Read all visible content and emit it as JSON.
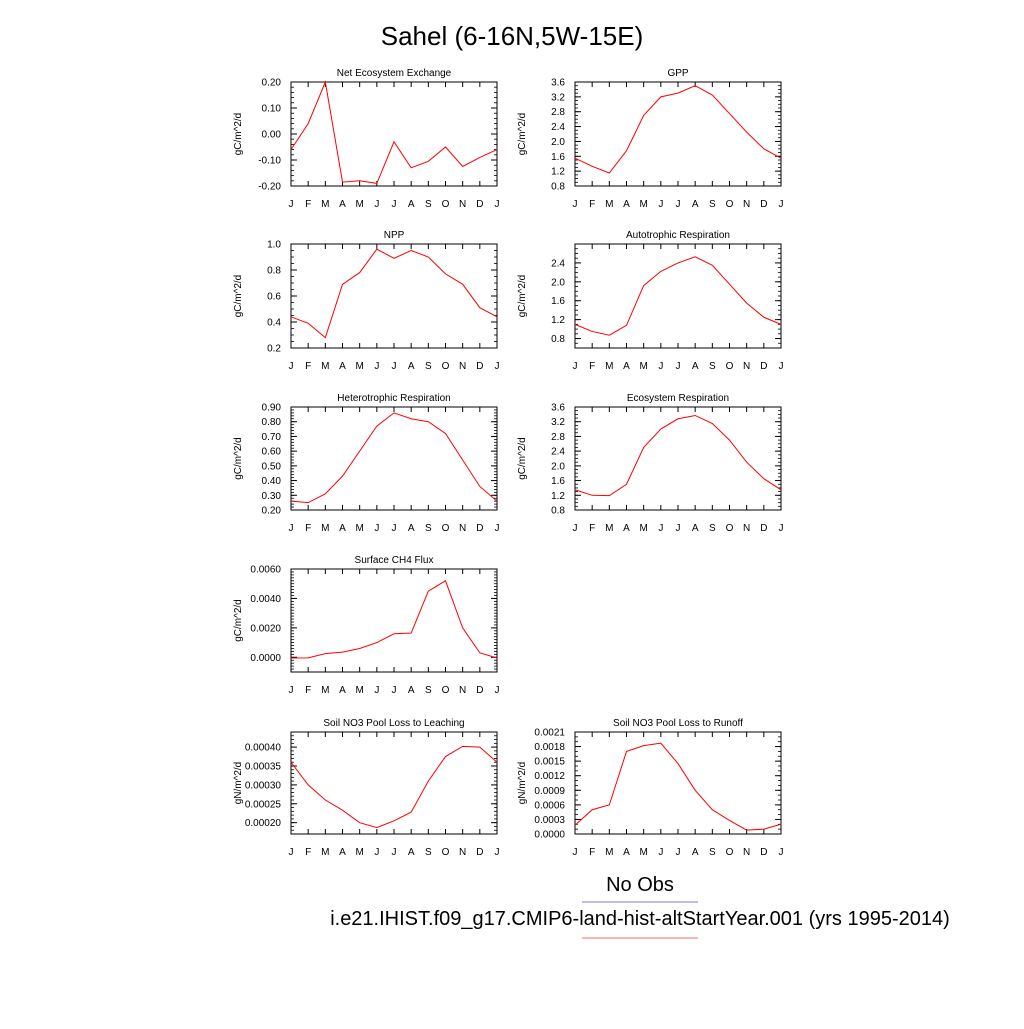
{
  "figure": {
    "title": "Sahel (6-16N,5W-15E)"
  },
  "legend": {
    "placement": "bottom-right",
    "entries": [
      {
        "label": "No Obs",
        "color": "#7777ee"
      },
      {
        "label": "i.e21.IHIST.f09_g17.CMIP6-land-hist-altStartYear.001 (yrs 1995-2014)",
        "color": "#ff6666"
      }
    ]
  },
  "chart_data": [
    {
      "type": "line",
      "title": "Net Ecosystem Exchange",
      "ylabel": "gC/m^2/d",
      "categories": [
        "J",
        "F",
        "M",
        "A",
        "M",
        "J",
        "J",
        "A",
        "S",
        "O",
        "N",
        "D",
        "J"
      ],
      "ylim": [
        -0.2,
        0.2
      ],
      "yticks": [
        -0.2,
        -0.1,
        0.0,
        0.1,
        0.2
      ],
      "ytick_labels": [
        "-0.20",
        "-0.10",
        "0.00",
        "0.10",
        "0.20"
      ],
      "minor_step": 0.02,
      "series": [
        {
          "color": "#ff0000",
          "values": [
            -0.06,
            0.04,
            0.2,
            -0.185,
            -0.18,
            -0.19,
            -0.03,
            -0.13,
            -0.105,
            -0.05,
            -0.125,
            -0.09,
            -0.06
          ]
        }
      ]
    },
    {
      "type": "line",
      "title": "GPP",
      "ylabel": "gC/m^2/d",
      "categories": [
        "J",
        "F",
        "M",
        "A",
        "M",
        "J",
        "J",
        "A",
        "S",
        "O",
        "N",
        "D",
        "J"
      ],
      "ylim": [
        0.8,
        3.6
      ],
      "yticks": [
        0.8,
        1.2,
        1.6,
        2.0,
        2.4,
        2.8,
        3.2,
        3.6
      ],
      "ytick_labels": [
        "0.8",
        "1.2",
        "1.6",
        "2.0",
        "2.4",
        "2.8",
        "3.2",
        "3.6"
      ],
      "minor_step": 0.1,
      "series": [
        {
          "color": "#ff0000",
          "values": [
            1.55,
            1.33,
            1.15,
            1.75,
            2.7,
            3.2,
            3.3,
            3.5,
            3.25,
            2.75,
            2.25,
            1.8,
            1.55
          ]
        }
      ]
    },
    {
      "type": "line",
      "title": "NPP",
      "ylabel": "gC/m^2/d",
      "categories": [
        "J",
        "F",
        "M",
        "A",
        "M",
        "J",
        "J",
        "A",
        "S",
        "O",
        "N",
        "D",
        "J"
      ],
      "ylim": [
        0.2,
        1.0
      ],
      "yticks": [
        0.2,
        0.4,
        0.6,
        0.8,
        1.0
      ],
      "ytick_labels": [
        "0.2",
        "0.4",
        "0.6",
        "0.8",
        "1.0"
      ],
      "minor_step": 0.05,
      "series": [
        {
          "color": "#ff0000",
          "values": [
            0.44,
            0.39,
            0.28,
            0.69,
            0.78,
            0.96,
            0.89,
            0.95,
            0.9,
            0.77,
            0.69,
            0.51,
            0.44
          ]
        }
      ]
    },
    {
      "type": "line",
      "title": "Autotrophic Respiration",
      "ylabel": "gC/m^2/d",
      "categories": [
        "J",
        "F",
        "M",
        "A",
        "M",
        "J",
        "J",
        "A",
        "S",
        "O",
        "N",
        "D",
        "J"
      ],
      "ylim": [
        0.6,
        2.8
      ],
      "yticks": [
        0.8,
        1.2,
        1.6,
        2.0,
        2.4
      ],
      "ytick_labels": [
        "0.8",
        "1.2",
        "1.6",
        "2.0",
        "2.4"
      ],
      "minor_step": 0.1,
      "series": [
        {
          "color": "#ff0000",
          "values": [
            1.1,
            0.95,
            0.87,
            1.08,
            1.92,
            2.22,
            2.4,
            2.53,
            2.35,
            1.95,
            1.55,
            1.25,
            1.1
          ]
        }
      ]
    },
    {
      "type": "line",
      "title": "Heterotrophic Respiration",
      "ylabel": "gC/m^2/d",
      "categories": [
        "J",
        "F",
        "M",
        "A",
        "M",
        "J",
        "J",
        "A",
        "S",
        "O",
        "N",
        "D",
        "J"
      ],
      "ylim": [
        0.2,
        0.9
      ],
      "yticks": [
        0.2,
        0.3,
        0.4,
        0.5,
        0.6,
        0.7,
        0.8,
        0.9
      ],
      "ytick_labels": [
        "0.20",
        "0.30",
        "0.40",
        "0.50",
        "0.60",
        "0.70",
        "0.80",
        "0.90"
      ],
      "minor_step": 0.02,
      "series": [
        {
          "color": "#ff0000",
          "values": [
            0.26,
            0.25,
            0.31,
            0.43,
            0.6,
            0.77,
            0.86,
            0.82,
            0.8,
            0.72,
            0.54,
            0.36,
            0.26
          ]
        }
      ]
    },
    {
      "type": "line",
      "title": "Ecosystem Respiration",
      "ylabel": "gC/m^2/d",
      "categories": [
        "J",
        "F",
        "M",
        "A",
        "M",
        "J",
        "J",
        "A",
        "S",
        "O",
        "N",
        "D",
        "J"
      ],
      "ylim": [
        0.8,
        3.6
      ],
      "yticks": [
        0.8,
        1.2,
        1.6,
        2.0,
        2.4,
        2.8,
        3.2,
        3.6
      ],
      "ytick_labels": [
        "0.8",
        "1.2",
        "1.6",
        "2.0",
        "2.4",
        "2.8",
        "3.2",
        "3.6"
      ],
      "minor_step": 0.1,
      "series": [
        {
          "color": "#ff0000",
          "values": [
            1.35,
            1.2,
            1.19,
            1.5,
            2.5,
            3.0,
            3.28,
            3.37,
            3.15,
            2.7,
            2.1,
            1.65,
            1.35
          ]
        }
      ]
    },
    {
      "type": "line",
      "title": "Surface CH4 Flux",
      "ylabel": "gC/m^2/d",
      "categories": [
        "J",
        "F",
        "M",
        "A",
        "M",
        "J",
        "J",
        "A",
        "S",
        "O",
        "N",
        "D",
        "J"
      ],
      "ylim": [
        -0.001,
        0.006
      ],
      "yticks": [
        0.0,
        0.002,
        0.004,
        0.006
      ],
      "ytick_labels": [
        "0.0000",
        "0.0020",
        "0.0040",
        "0.0060"
      ],
      "minor_step": 0.0002,
      "series": [
        {
          "color": "#ff0000",
          "values": [
            -5e-05,
            -4e-05,
            0.00025,
            0.00035,
            0.0006,
            0.001,
            0.0016,
            0.00165,
            0.0045,
            0.0052,
            0.002,
            0.0003,
            -5e-05
          ]
        }
      ]
    },
    {
      "type": "line",
      "title": "Soil NO3 Pool Loss to Leaching",
      "ylabel": "gN/m^2/d",
      "categories": [
        "J",
        "F",
        "M",
        "A",
        "M",
        "J",
        "J",
        "A",
        "S",
        "O",
        "N",
        "D",
        "J"
      ],
      "ylim": [
        0.00017,
        0.00044
      ],
      "yticks": [
        0.0002,
        0.00025,
        0.0003,
        0.00035,
        0.0004
      ],
      "ytick_labels": [
        "0.00020",
        "0.00025",
        "0.00030",
        "0.00035",
        "0.00040"
      ],
      "minor_step": 1e-05,
      "series": [
        {
          "color": "#ff0000",
          "values": [
            0.00036,
            0.0003,
            0.00026,
            0.000233,
            0.0002,
            0.000187,
            0.000205,
            0.000228,
            0.00031,
            0.000375,
            0.000402,
            0.0004,
            0.00036
          ]
        }
      ]
    },
    {
      "type": "line",
      "title": "Soil NO3 Pool Loss to Runoff",
      "ylabel": "gN/m^2/d",
      "categories": [
        "J",
        "F",
        "M",
        "A",
        "M",
        "J",
        "J",
        "A",
        "S",
        "O",
        "N",
        "D",
        "J"
      ],
      "ylim": [
        0.0,
        0.0021
      ],
      "yticks": [
        0.0,
        0.0003,
        0.0006,
        0.0009,
        0.0012,
        0.0015,
        0.0018,
        0.0021
      ],
      "ytick_labels": [
        "0.0000",
        "0.0003",
        "0.0006",
        "0.0009",
        "0.0012",
        "0.0015",
        "0.0018",
        "0.0021"
      ],
      "minor_step": 0.0001,
      "series": [
        {
          "color": "#ff0000",
          "values": [
            0.00018,
            0.0005,
            0.0006,
            0.0017,
            0.00182,
            0.00187,
            0.00145,
            0.0009,
            0.0005,
            0.00028,
            8e-05,
            0.0001,
            0.0002
          ]
        }
      ]
    }
  ]
}
